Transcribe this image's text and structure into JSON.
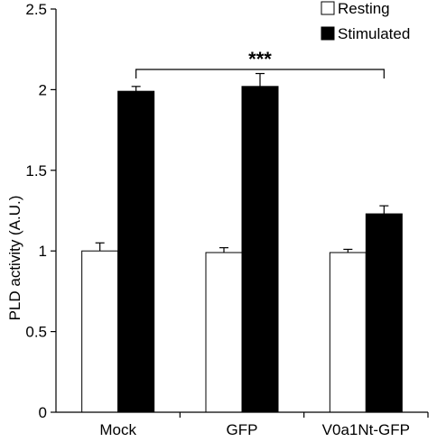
{
  "chart_data": {
    "type": "bar",
    "title": "",
    "xlabel": "",
    "ylabel": "PLD activity (A.U.)",
    "ylim": [
      0,
      2.5
    ],
    "yticks": [
      "0",
      "0.5",
      "1",
      "1.5",
      "2",
      "2.5"
    ],
    "ytick_values": [
      0,
      0.5,
      1,
      1.5,
      2,
      2.5
    ],
    "categories": [
      "Mock",
      "GFP",
      "V0a1Nt-GFP"
    ],
    "series": [
      {
        "name": "Resting",
        "color": "#ffffff",
        "values": [
          1.0,
          0.99,
          0.99
        ],
        "errors": [
          0.05,
          0.03,
          0.02
        ]
      },
      {
        "name": "Stimulated",
        "color": "#000000",
        "values": [
          1.99,
          2.02,
          1.23
        ],
        "errors": [
          0.03,
          0.08,
          0.05
        ]
      }
    ],
    "legend_position": "top-right",
    "grid": false,
    "significance": {
      "label": "***",
      "from_category": 0,
      "to_category": 2
    }
  }
}
